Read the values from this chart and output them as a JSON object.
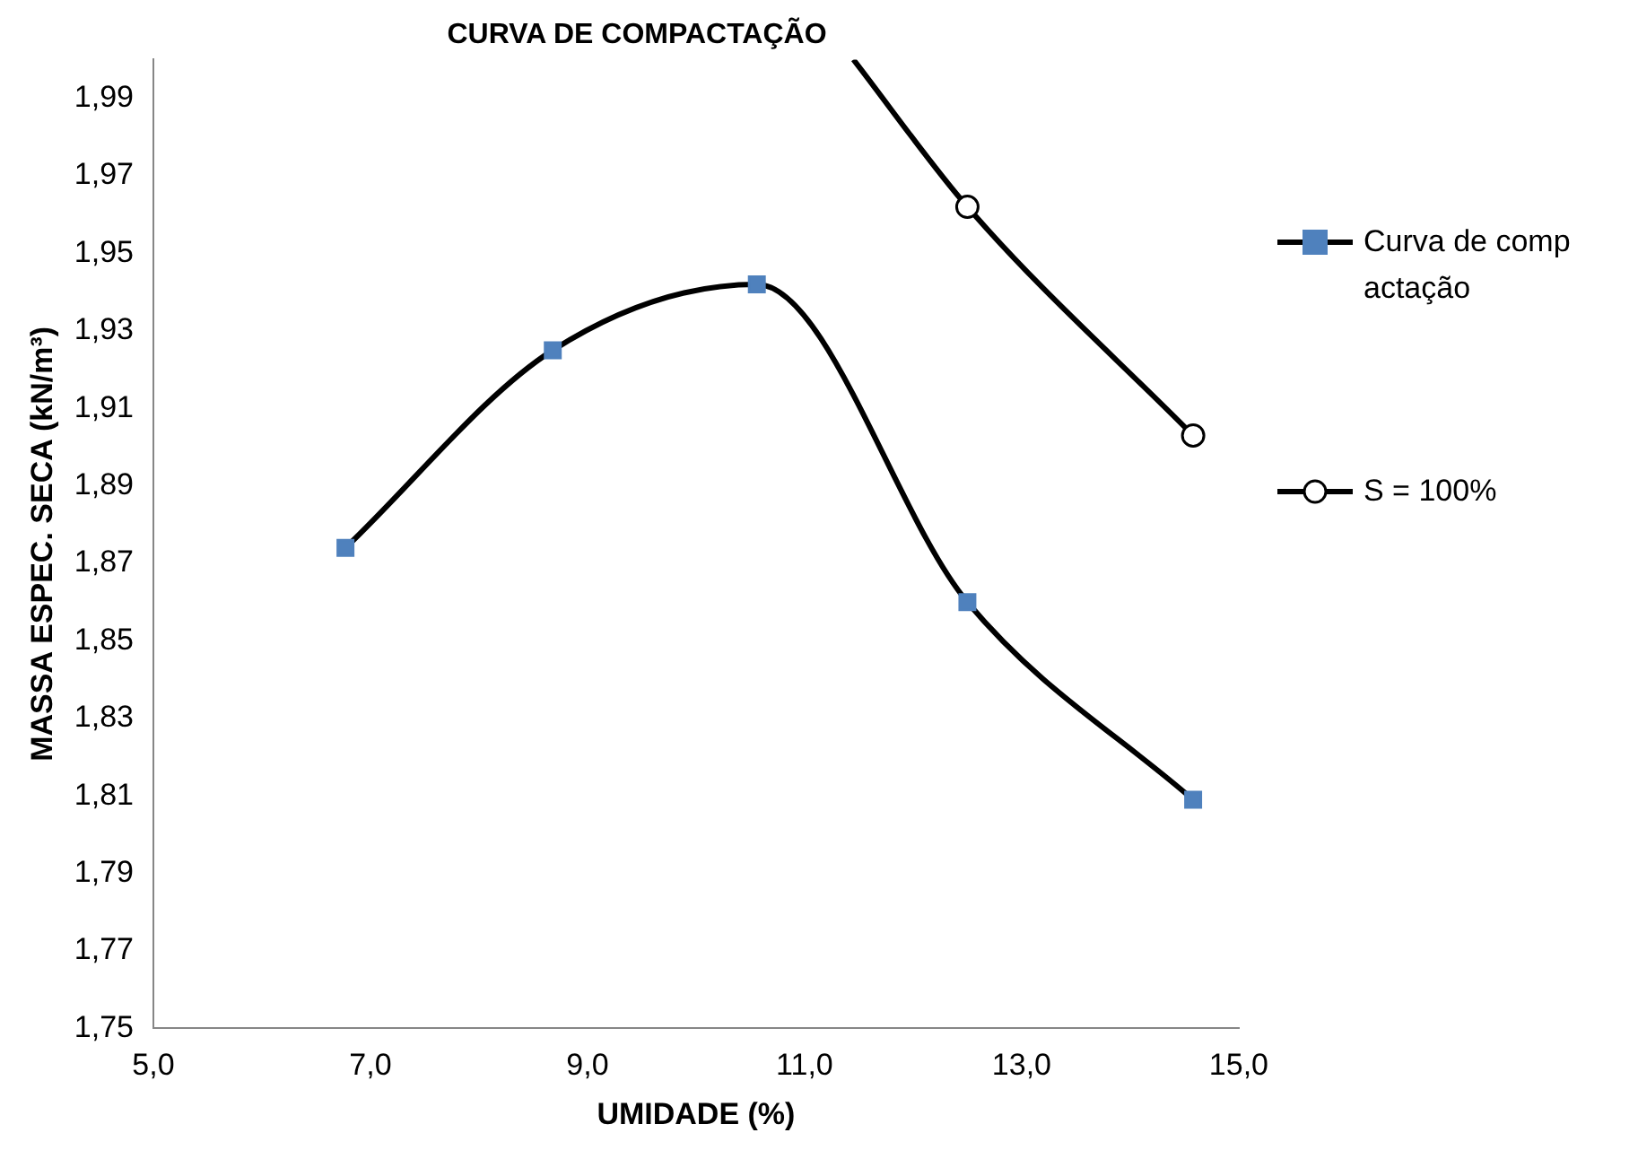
{
  "chart_data": {
    "type": "line",
    "title": "CURVA DE COMPACTAÇÃO",
    "xlabel": "UMIDADE (%)",
    "ylabel": "MASSA ESPEC. SECA (kN/m³)",
    "series": [
      {
        "name": "Curva de compactação",
        "color": "#000000",
        "marker": "square",
        "x": [
          6.77,
          8.68,
          10.56,
          12.5,
          14.58
        ],
        "values": [
          1.874,
          1.925,
          1.942,
          1.86,
          1.809
        ]
      },
      {
        "name": "S = 100%",
        "color": "#000000",
        "marker": "circle",
        "x": [
          11.45,
          12.5,
          14.58
        ],
        "values": [
          2.0,
          1.962,
          1.903
        ]
      }
    ],
    "xlim": [
      5,
      15
    ],
    "xticks": [
      {
        "value": 5,
        "label": "5,0"
      },
      {
        "value": 7,
        "label": "7,0"
      },
      {
        "value": 9,
        "label": "9,0"
      },
      {
        "value": 11,
        "label": "11,0"
      },
      {
        "value": 13,
        "label": "13,0"
      },
      {
        "value": 15,
        "label": "15,0"
      }
    ],
    "ylim": [
      1.75,
      2.0
    ],
    "yticks": [
      {
        "value": 1.75,
        "label": "1,75"
      },
      {
        "value": 1.77,
        "label": "1,77"
      },
      {
        "value": 1.79,
        "label": "1,79"
      },
      {
        "value": 1.81,
        "label": "1,81"
      },
      {
        "value": 1.83,
        "label": "1,83"
      },
      {
        "value": 1.85,
        "label": "1,85"
      },
      {
        "value": 1.87,
        "label": "1,87"
      },
      {
        "value": 1.89,
        "label": "1,89"
      },
      {
        "value": 1.91,
        "label": "1,91"
      },
      {
        "value": 1.93,
        "label": "1,93"
      },
      {
        "value": 1.95,
        "label": "1,95"
      },
      {
        "value": 1.97,
        "label": "1,97"
      },
      {
        "value": 1.99,
        "label": "1,99"
      }
    ],
    "grid": false,
    "legend": "right"
  }
}
